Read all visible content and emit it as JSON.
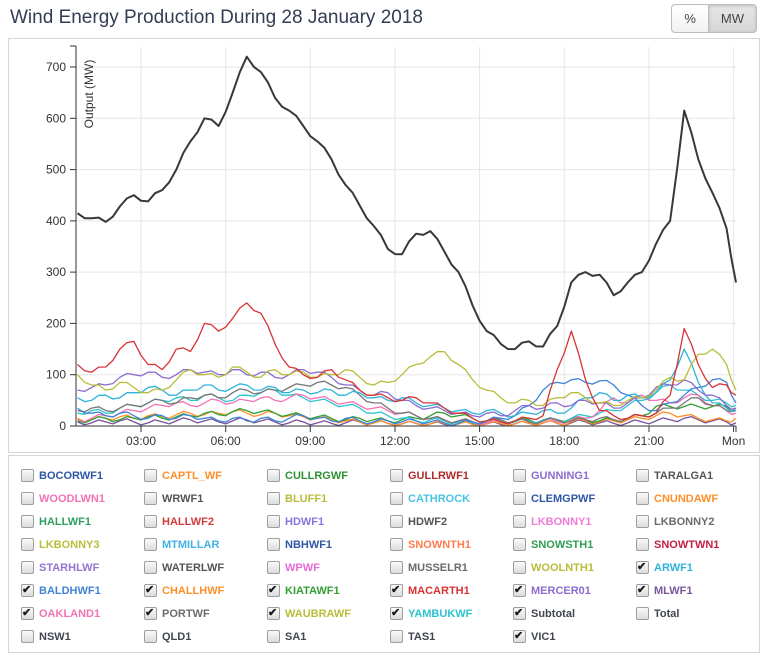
{
  "header": {
    "title": "Wind Energy Production During 28 January 2018",
    "unit_toggle": {
      "options": [
        "%",
        "MW"
      ],
      "selected": "MW"
    }
  },
  "chart": {
    "y_axis": {
      "title": "Output (MW)",
      "ticks": [
        0,
        100,
        200,
        300,
        400,
        500,
        600,
        700
      ]
    },
    "x_axis": {
      "ticks": [
        {
          "t": 3,
          "label": "03:00"
        },
        {
          "t": 6,
          "label": "06:00"
        },
        {
          "t": 9,
          "label": "09:00"
        },
        {
          "t": 12,
          "label": "12:00"
        },
        {
          "t": 15,
          "label": "15:00"
        },
        {
          "t": 18,
          "label": "18:00"
        },
        {
          "t": 21,
          "label": "21:00"
        },
        {
          "t": 24,
          "label": "Mon"
        }
      ]
    }
  },
  "chart_data": {
    "type": "line",
    "title": "Wind Energy Production During 28 January 2018",
    "ylabel": "Output (MW)",
    "ylim": [
      0,
      740
    ],
    "xlim_hours": [
      0.75,
      24.25
    ],
    "grid": "on",
    "legend_position": "bottom-checkbox-grid",
    "x_hours": [
      0.75,
      1.25,
      1.75,
      2.25,
      2.75,
      3.25,
      3.75,
      4.25,
      4.75,
      5.25,
      5.75,
      6.25,
      6.75,
      7.25,
      7.75,
      8.25,
      8.75,
      9.25,
      9.75,
      10.25,
      10.75,
      11.25,
      11.75,
      12.25,
      12.75,
      13.25,
      13.75,
      14.25,
      14.75,
      15.25,
      15.75,
      16.25,
      16.75,
      17.25,
      17.75,
      18.25,
      18.75,
      19.25,
      19.75,
      20.25,
      20.75,
      21.25,
      21.75,
      22.25,
      22.75,
      23.25,
      23.75,
      24.25
    ],
    "series": [
      {
        "name": "MLWF1",
        "color": "#7a549b",
        "values": [
          8,
          6,
          8,
          10,
          8,
          6,
          8,
          10,
          12,
          10,
          8,
          10,
          12,
          10,
          8,
          6,
          8,
          6,
          5,
          6,
          8,
          6,
          5,
          4,
          5,
          4,
          3,
          4,
          5,
          4,
          3,
          4,
          5,
          6,
          5,
          6,
          8,
          6,
          5,
          6,
          8,
          10,
          12,
          15,
          12,
          10,
          8,
          6
        ]
      },
      {
        "name": "CHALLHWF",
        "color": "#ff9029",
        "values": [
          15,
          12,
          15,
          18,
          15,
          20,
          18,
          22,
          25,
          22,
          25,
          28,
          25,
          22,
          25,
          20,
          18,
          15,
          12,
          10,
          8,
          6,
          5,
          4,
          5,
          4,
          5,
          4,
          3,
          4,
          5,
          4,
          5,
          6,
          5,
          8,
          10,
          8,
          10,
          12,
          15,
          20,
          25,
          20,
          15,
          12,
          10,
          15
        ]
      },
      {
        "name": "KIATAWF1",
        "color": "#33a033",
        "values": [
          10,
          12,
          15,
          12,
          15,
          18,
          15,
          18,
          20,
          25,
          22,
          28,
          30,
          28,
          25,
          22,
          20,
          18,
          15,
          12,
          15,
          12,
          10,
          12,
          15,
          20,
          25,
          20,
          15,
          10,
          8,
          10,
          12,
          10,
          12,
          15,
          12,
          10,
          12,
          15,
          20,
          38,
          38,
          38,
          38,
          38,
          38,
          30
        ]
      },
      {
        "name": "YAMBUKWF",
        "color": "#2cc5cf",
        "values": [
          25,
          30,
          25,
          35,
          40,
          45,
          50,
          55,
          50,
          60,
          55,
          50,
          60,
          65,
          70,
          60,
          55,
          50,
          45,
          40,
          35,
          25,
          20,
          15,
          10,
          12,
          10,
          8,
          6,
          8,
          10,
          8,
          10,
          12,
          10,
          15,
          20,
          25,
          30,
          40,
          50,
          65,
          80,
          70,
          60,
          50,
          45,
          40
        ]
      },
      {
        "name": "OAKLAND1",
        "color": "#f272b6",
        "values": [
          12,
          15,
          20,
          25,
          30,
          35,
          40,
          45,
          40,
          45,
          50,
          45,
          50,
          55,
          50,
          55,
          60,
          55,
          50,
          45,
          40,
          35,
          30,
          25,
          20,
          15,
          12,
          10,
          8,
          6,
          8,
          10,
          8,
          10,
          8,
          12,
          15,
          30,
          55,
          45,
          60,
          50,
          45,
          55,
          60,
          40,
          30,
          25
        ]
      },
      {
        "name": "PORTWF",
        "color": "#767676",
        "values": [
          30,
          35,
          30,
          35,
          40,
          45,
          50,
          45,
          55,
          60,
          55,
          65,
          70,
          65,
          70,
          75,
          80,
          85,
          80,
          75,
          60,
          45,
          35,
          25,
          20,
          15,
          12,
          10,
          8,
          10,
          12,
          10,
          8,
          10,
          12,
          10,
          12,
          15,
          12,
          15,
          20,
          25,
          35,
          45,
          55,
          40,
          30,
          35
        ]
      },
      {
        "name": "BALDHWF1",
        "color": "#4183d7",
        "values": [
          35,
          25,
          20,
          25,
          20,
          15,
          20,
          15,
          20,
          15,
          10,
          15,
          10,
          15,
          10,
          15,
          20,
          15,
          10,
          15,
          10,
          8,
          10,
          8,
          10,
          8,
          6,
          5,
          8,
          10,
          15,
          20,
          40,
          70,
          85,
          90,
          85,
          88,
          80,
          60,
          40,
          30,
          45,
          60,
          75,
          90,
          85,
          45
        ]
      },
      {
        "name": "ARWF1",
        "color": "#2db3d9",
        "values": [
          55,
          50,
          60,
          55,
          65,
          75,
          70,
          60,
          70,
          80,
          70,
          75,
          80,
          70,
          75,
          65,
          70,
          65,
          70,
          60,
          65,
          55,
          50,
          55,
          45,
          40,
          35,
          30,
          25,
          30,
          25,
          20,
          25,
          30,
          25,
          35,
          55,
          65,
          50,
          60,
          55,
          65,
          90,
          150,
          85,
          45,
          35,
          30
        ]
      },
      {
        "name": "MERCER01",
        "color": "#8d6cce",
        "values": [
          70,
          75,
          80,
          95,
          100,
          105,
          95,
          100,
          110,
          105,
          100,
          110,
          100,
          105,
          95,
          100,
          110,
          105,
          95,
          80,
          70,
          60,
          65,
          50,
          40,
          35,
          30,
          25,
          20,
          25,
          20,
          30,
          40,
          35,
          45,
          40,
          50,
          45,
          35,
          45,
          55,
          75,
          80,
          90,
          70,
          60,
          40,
          35
        ]
      },
      {
        "name": "WAUBRAWF",
        "color": "#b9bd3a",
        "values": [
          100,
          80,
          70,
          85,
          75,
          65,
          70,
          90,
          110,
          100,
          95,
          115,
          105,
          95,
          110,
          100,
          105,
          95,
          100,
          110,
          95,
          80,
          85,
          100,
          120,
          135,
          145,
          120,
          90,
          70,
          55,
          45,
          50,
          40,
          55,
          65,
          55,
          45,
          40,
          50,
          55,
          70,
          95,
          90,
          140,
          150,
          120,
          70
        ]
      },
      {
        "name": "MACARTH1",
        "color": "#d63434",
        "values": [
          120,
          105,
          115,
          150,
          165,
          120,
          110,
          150,
          145,
          200,
          185,
          210,
          240,
          220,
          160,
          115,
          100,
          95,
          110,
          90,
          70,
          60,
          55,
          50,
          55,
          45,
          35,
          25,
          15,
          10,
          8,
          10,
          15,
          20,
          110,
          185,
          90,
          30,
          20,
          15,
          20,
          25,
          60,
          190,
          120,
          75,
          80,
          60
        ]
      },
      {
        "name": "Subtotal",
        "color": "#383838",
        "values": [
          415,
          405,
          398,
          428,
          450,
          438,
          460,
          500,
          555,
          600,
          585,
          650,
          720,
          690,
          640,
          615,
          585,
          555,
          520,
          470,
          430,
          390,
          345,
          335,
          375,
          380,
          340,
          300,
          235,
          185,
          160,
          150,
          165,
          155,
          195,
          280,
          300,
          295,
          255,
          280,
          300,
          355,
          400,
          615,
          520,
          455,
          385,
          280
        ]
      }
    ]
  },
  "legend": {
    "items": [
      {
        "label": "BOCORWF1",
        "color": "#2d56a5",
        "checked": false
      },
      {
        "label": "CAPTL_WF",
        "color": "#ff9029",
        "checked": false
      },
      {
        "label": "CULLRGWF",
        "color": "#2f9232",
        "checked": false
      },
      {
        "label": "GULLRWF1",
        "color": "#b02b2b",
        "checked": false
      },
      {
        "label": "GUNNING1",
        "color": "#8d6cce",
        "checked": false
      },
      {
        "label": "TARALGA1",
        "color": "#555555",
        "checked": false
      },
      {
        "label": "WOODLWN1",
        "color": "#f272b6",
        "checked": false
      },
      {
        "label": "WRWF1",
        "color": "#555555",
        "checked": false
      },
      {
        "label": "BLUFF1",
        "color": "#b9bd3a",
        "checked": false
      },
      {
        "label": "CATHROCK",
        "color": "#49c3e1",
        "checked": false
      },
      {
        "label": "CLEMGPWF",
        "color": "#2d56a5",
        "checked": false
      },
      {
        "label": "CNUNDAWF",
        "color": "#ff9029",
        "checked": false
      },
      {
        "label": "HALLWF1",
        "color": "#2d9e5f",
        "checked": false
      },
      {
        "label": "HALLWF2",
        "color": "#d23b3b",
        "checked": false
      },
      {
        "label": "HDWF1",
        "color": "#8677e0",
        "checked": false
      },
      {
        "label": "HDWF2",
        "color": "#555555",
        "checked": false
      },
      {
        "label": "LKBONNY1",
        "color": "#ef7ad9",
        "checked": false
      },
      {
        "label": "LKBONNY2",
        "color": "#6b6b6b",
        "checked": false
      },
      {
        "label": "LKBONNY3",
        "color": "#b9bd3a",
        "checked": false
      },
      {
        "label": "MTMILLAR",
        "color": "#44b0e8",
        "checked": false
      },
      {
        "label": "NBHWF1",
        "color": "#2d56a5",
        "checked": false
      },
      {
        "label": "SNOWNTH1",
        "color": "#fd7c50",
        "checked": false
      },
      {
        "label": "SNOWSTH1",
        "color": "#2f9e4e",
        "checked": false
      },
      {
        "label": "SNOWTWN1",
        "color": "#c11e4a",
        "checked": false
      },
      {
        "label": "STARHLWF",
        "color": "#9173d2",
        "checked": false
      },
      {
        "label": "WATERLWF",
        "color": "#555555",
        "checked": false
      },
      {
        "label": "WPWF",
        "color": "#e86ad8",
        "checked": false
      },
      {
        "label": "MUSSELR1",
        "color": "#6b6b6b",
        "checked": false
      },
      {
        "label": "WOOLNTH1",
        "color": "#b9bd3a",
        "checked": false
      },
      {
        "label": "ARWF1",
        "color": "#2db3d9",
        "checked": true
      },
      {
        "label": "BALDHWF1",
        "color": "#4183d7",
        "checked": true
      },
      {
        "label": "CHALLHWF",
        "color": "#ff9029",
        "checked": true
      },
      {
        "label": "KIATAWF1",
        "color": "#33a033",
        "checked": true
      },
      {
        "label": "MACARTH1",
        "color": "#d63434",
        "checked": true
      },
      {
        "label": "MERCER01",
        "color": "#8d6cce",
        "checked": true
      },
      {
        "label": "MLWF1",
        "color": "#7a549b",
        "checked": true
      },
      {
        "label": "OAKLAND1",
        "color": "#f272b6",
        "checked": true
      },
      {
        "label": "PORTWF",
        "color": "#6b6b6b",
        "checked": true
      },
      {
        "label": "WAUBRAWF",
        "color": "#b9bd3a",
        "checked": true
      },
      {
        "label": "YAMBUKWF",
        "color": "#2cc5cf",
        "checked": true
      },
      {
        "label": "Subtotal",
        "color": "#424651",
        "checked": true
      },
      {
        "label": "Total",
        "color": "#424651",
        "checked": false
      },
      {
        "label": "NSW1",
        "color": "#424651",
        "checked": false
      },
      {
        "label": "QLD1",
        "color": "#424651",
        "checked": false
      },
      {
        "label": "SA1",
        "color": "#424651",
        "checked": false
      },
      {
        "label": "TAS1",
        "color": "#424651",
        "checked": false
      },
      {
        "label": "VIC1",
        "color": "#424651",
        "checked": true
      }
    ]
  }
}
